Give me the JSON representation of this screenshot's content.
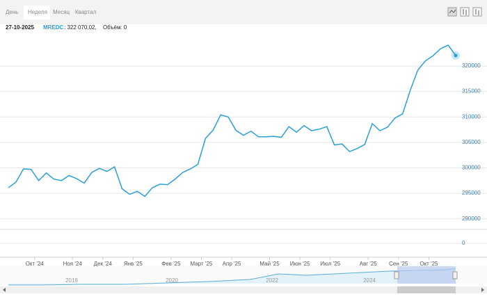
{
  "tabs": [
    "День",
    "Неделя",
    "Месяц",
    "Квартал"
  ],
  "active_tab": 1,
  "header": {
    "date": "27-10-2025",
    "value_label": ": 322 070,02,",
    "volume_label": "Объём: 0"
  },
  "chart_data": {
    "type": "line",
    "categories": [
      null,
      null,
      null,
      "Окт '24",
      null,
      null,
      null,
      null,
      "Ноя '24",
      null,
      null,
      null,
      "Дек '24",
      null,
      null,
      null,
      "Янв '25",
      null,
      null,
      null,
      null,
      "Фев '25",
      null,
      null,
      null,
      "Март '25",
      null,
      null,
      null,
      "Апр '25",
      null,
      null,
      null,
      null,
      "Май '25",
      null,
      null,
      null,
      "Июн '25",
      null,
      null,
      null,
      "Июл '25",
      null,
      null,
      null,
      null,
      "Авг '25",
      null,
      null,
      null,
      "Сен '25",
      null,
      null,
      null,
      "Окт '25",
      null,
      null,
      null,
      null
    ],
    "series": [
      {
        "name": "MREDC",
        "color": "#2a9fd6",
        "values": [
          296100,
          297200,
          299800,
          299700,
          297500,
          299000,
          297800,
          297500,
          298500,
          297900,
          297000,
          299100,
          299900,
          299300,
          300200,
          295900,
          294800,
          295400,
          294400,
          296100,
          296800,
          296700,
          297800,
          299100,
          299800,
          300700,
          305800,
          307400,
          310400,
          310000,
          307400,
          306400,
          307200,
          306100,
          306100,
          306200,
          306000,
          308100,
          307000,
          308300,
          307300,
          307600,
          308100,
          304500,
          304700,
          303200,
          303800,
          304600,
          308700,
          307300,
          308000,
          309800,
          310600,
          315200,
          319200,
          321000,
          322000,
          323400,
          324100,
          322070.02
        ]
      }
    ],
    "ylim": [
      288600,
      325050
    ],
    "yticks": [
      290000,
      295000,
      300000,
      305000,
      310000,
      315000,
      320000
    ],
    "volume_yticks": [
      0
    ],
    "grid": true
  },
  "navigator": {
    "labels": [
      "2018",
      "2020",
      "2022",
      "2024"
    ]
  }
}
